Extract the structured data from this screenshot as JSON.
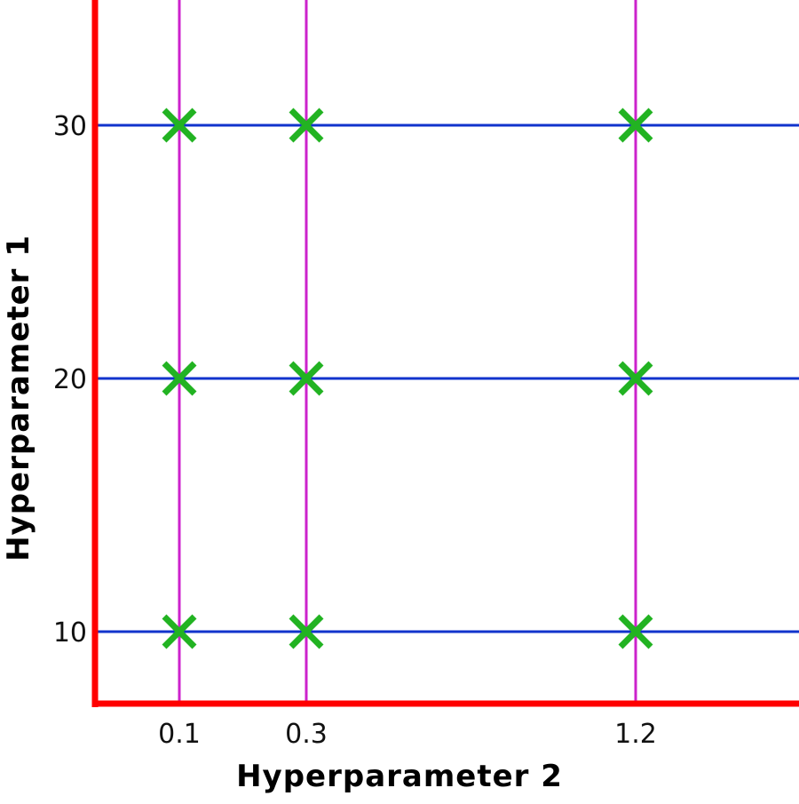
{
  "chart_data": {
    "type": "scatter",
    "title": "",
    "xlabel": "Hyperparameter 2",
    "ylabel": "Hyperparameter 1",
    "x_ticks": [
      "0.1",
      "0.3",
      "1.2"
    ],
    "y_ticks": [
      "10",
      "20",
      "30"
    ],
    "x_values": [
      0.1,
      0.3,
      1.2
    ],
    "y_values": [
      10,
      20,
      30
    ],
    "points": [
      {
        "x": 0.1,
        "y": 10
      },
      {
        "x": 0.3,
        "y": 10
      },
      {
        "x": 1.2,
        "y": 10
      },
      {
        "x": 0.1,
        "y": 20
      },
      {
        "x": 0.3,
        "y": 20
      },
      {
        "x": 1.2,
        "y": 20
      },
      {
        "x": 0.1,
        "y": 30
      },
      {
        "x": 0.3,
        "y": 30
      },
      {
        "x": 1.2,
        "y": 30
      }
    ],
    "marker": "x",
    "grid": "lines through each x and y value",
    "legend": "none"
  },
  "colors": {
    "axes": "#ff0000",
    "x_value_lines": "#cc22cc",
    "y_value_lines": "#1133cc",
    "markers": "#22b322",
    "text": "#111111"
  }
}
